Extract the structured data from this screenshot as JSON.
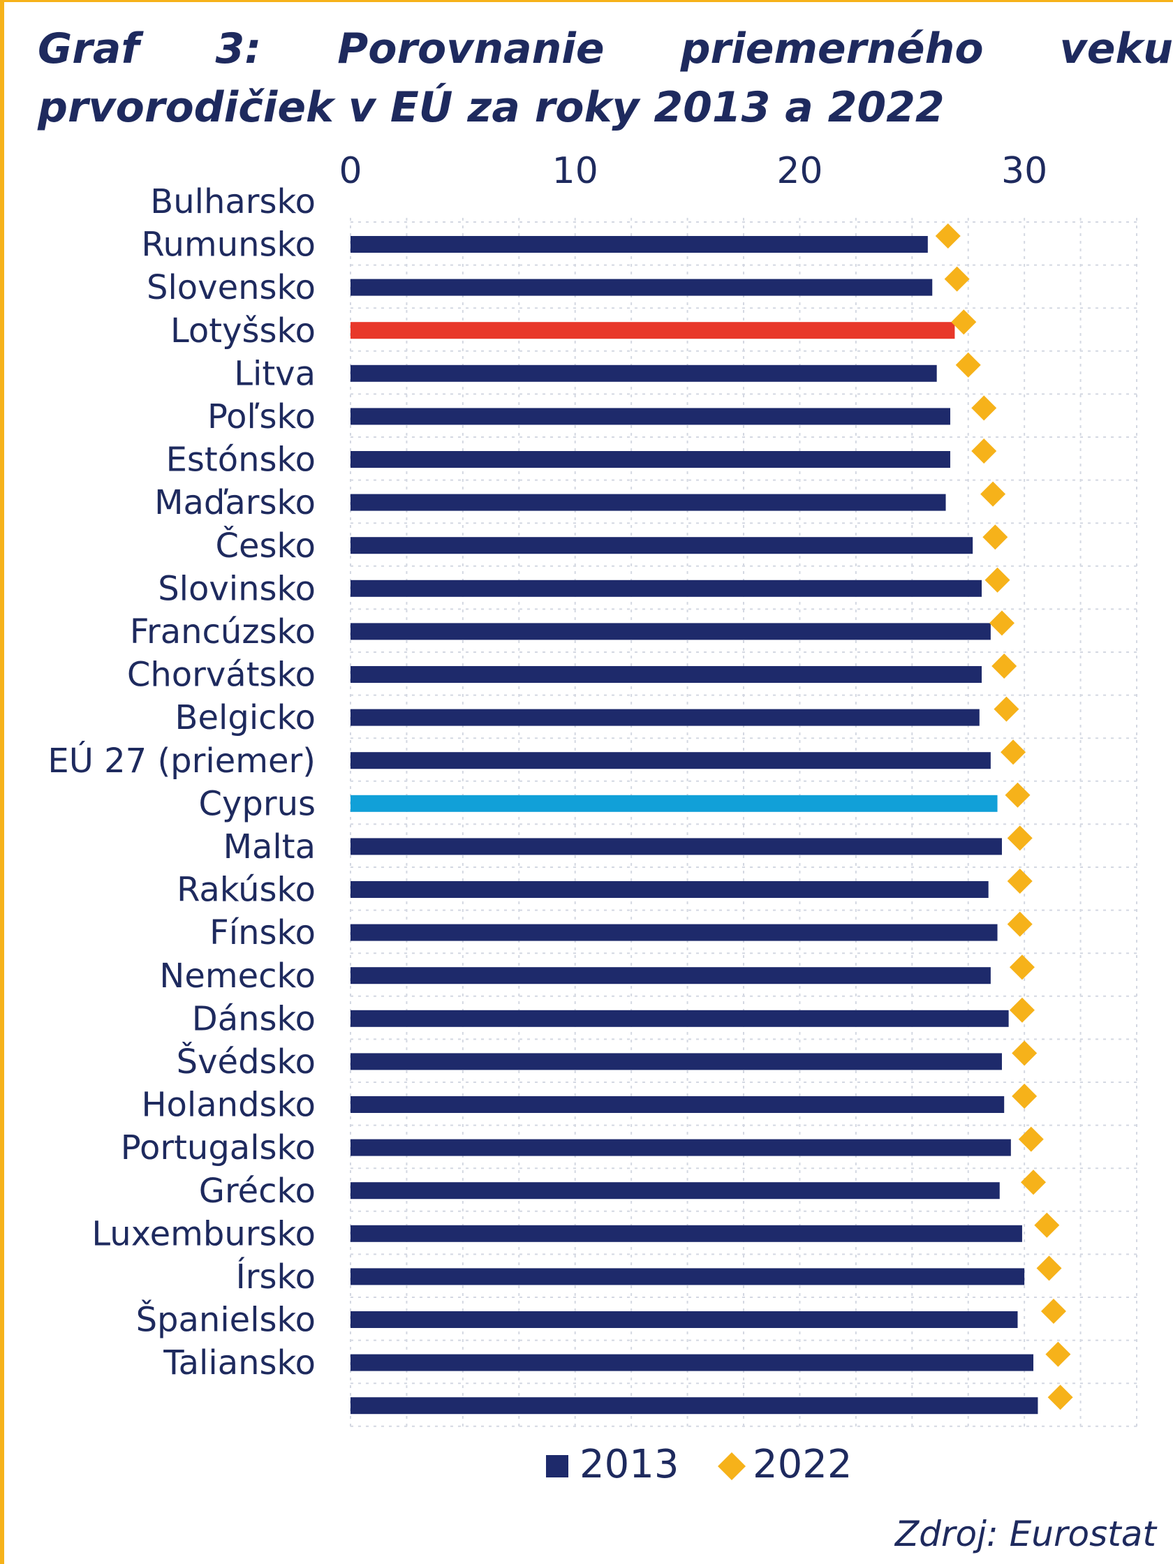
{
  "chart_data": {
    "type": "bar",
    "orientation": "horizontal",
    "title": "Graf 3: Porovnanie priemerného veku prvorodičiek v EÚ za roky 2013 a 2022",
    "xlabel": "",
    "ylabel": "",
    "xlim": [
      0,
      35
    ],
    "xticks": [
      0,
      10,
      20,
      30
    ],
    "grid": true,
    "legend_position": "bottom",
    "categories": [
      "Bulharsko",
      "Rumunsko",
      "Slovensko",
      "Lotyšsko",
      "Litva",
      "Poľsko",
      "Estónsko",
      "Maďarsko",
      "Česko",
      "Slovinsko",
      "Francúzsko",
      "Chorvátsko",
      "Belgicko",
      "EÚ 27 (priemer)",
      "Cyprus",
      "Malta",
      "Rakúsko",
      "Fínsko",
      "Nemecko",
      "Dánsko",
      "Švédsko",
      "Holandsko",
      "Portugalsko",
      "Grécko",
      "Luxembursko",
      "Írsko",
      "Španielsko",
      "Taliansko"
    ],
    "series": [
      {
        "name": "2013",
        "mark": "bar",
        "color": "#1e2a6b",
        "values": [
          25.7,
          25.9,
          26.9,
          26.1,
          26.7,
          26.7,
          26.5,
          27.7,
          28.1,
          28.5,
          28.1,
          28.0,
          28.5,
          28.8,
          29.0,
          28.4,
          28.8,
          28.5,
          29.3,
          29.0,
          29.1,
          29.4,
          28.9,
          29.9,
          30.0,
          29.7,
          30.4,
          30.6
        ]
      },
      {
        "name": "2022",
        "mark": "diamond",
        "color": "#f6b21a",
        "values": [
          26.6,
          27.0,
          27.3,
          27.5,
          28.2,
          28.2,
          28.6,
          28.7,
          28.8,
          29.0,
          29.1,
          29.2,
          29.5,
          29.7,
          29.8,
          29.8,
          29.8,
          29.9,
          29.9,
          30.0,
          30.0,
          30.3,
          30.4,
          31.0,
          31.1,
          31.3,
          31.5,
          31.6
        ]
      }
    ],
    "highlight_colors": {
      "Slovensko": "#e8382a",
      "EÚ 27 (priemer)": "#11a0d8"
    }
  },
  "source_note": "Zdroj: Eurostat",
  "colors": {
    "text": "#1e2a5e",
    "grid": "#d4d8e2",
    "frame": "#f6b21a"
  }
}
